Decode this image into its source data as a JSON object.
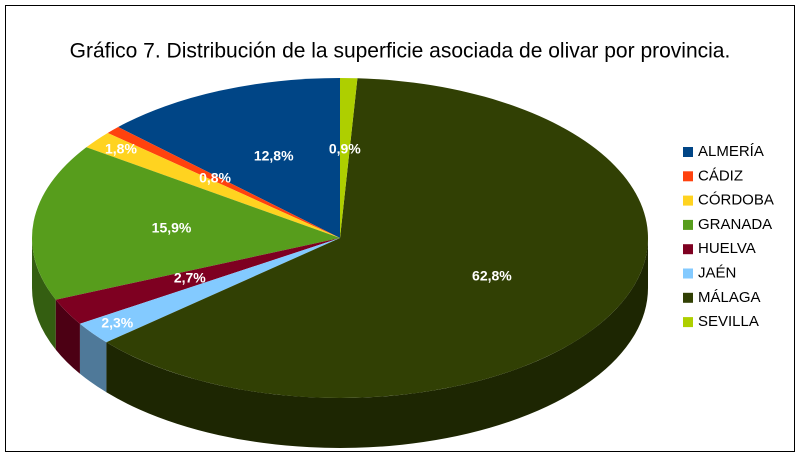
{
  "chart_data": {
    "type": "pie3d",
    "title": "Gráfico 7. Distribución de la superficie asociada de olivar por provincia.",
    "categories": [
      "ALMERÍA",
      "CÁDIZ",
      "CÓRDOBA",
      "GRANADA",
      "HUELVA",
      "JAÉN",
      "MÁLAGA",
      "SEVILLA"
    ],
    "values": [
      12.8,
      0.8,
      1.8,
      15.9,
      2.7,
      2.3,
      62.8,
      0.9
    ],
    "value_labels": [
      "12,8%",
      "0,8%",
      "1,8%",
      "15,9%",
      "2,7%",
      "2,3%",
      "62,8%",
      "0,9%"
    ],
    "colors": [
      "#004586",
      "#ff420e",
      "#ffd320",
      "#579d1c",
      "#7e0021",
      "#83caff",
      "#314004",
      "#aecf00"
    ],
    "legend": "right"
  }
}
